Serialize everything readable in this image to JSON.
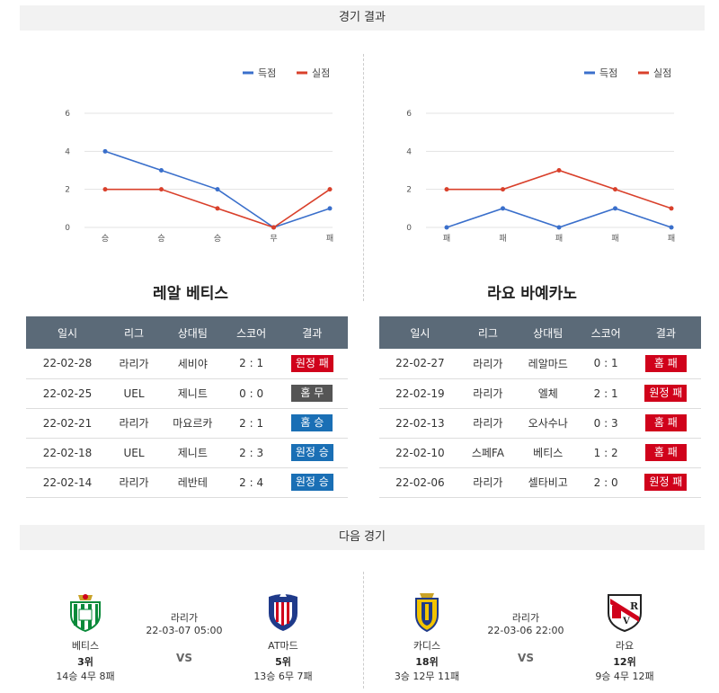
{
  "headers": {
    "results": "경기 결과",
    "next": "다음 경기"
  },
  "legend": {
    "scored": "득점",
    "conceded": "실점"
  },
  "colors": {
    "scored": "#3a6fcb",
    "conceded": "#d9402b",
    "loss": "#d0021b",
    "draw": "#555555",
    "win": "#1a6fb5",
    "table_header": "#5b6a78"
  },
  "chart_data": [
    {
      "type": "line",
      "categories": [
        "승",
        "승",
        "승",
        "무",
        "패"
      ],
      "yticks": [
        0,
        2,
        4,
        6
      ],
      "ylim": [
        0,
        6
      ],
      "series": [
        {
          "name": "득점",
          "values": [
            4,
            3,
            2,
            0,
            1
          ]
        },
        {
          "name": "실점",
          "values": [
            2,
            2,
            1,
            0,
            2
          ]
        }
      ]
    },
    {
      "type": "line",
      "categories": [
        "패",
        "패",
        "패",
        "패",
        "패"
      ],
      "yticks": [
        0,
        2,
        4,
        6
      ],
      "ylim": [
        0,
        6
      ],
      "series": [
        {
          "name": "득점",
          "values": [
            0,
            1,
            0,
            1,
            0
          ]
        },
        {
          "name": "실점",
          "values": [
            2,
            2,
            3,
            2,
            1
          ]
        }
      ]
    }
  ],
  "columns": [
    "일시",
    "리그",
    "상대팀",
    "스코어",
    "결과"
  ],
  "teams": [
    {
      "title": "레알 베티스",
      "rows": [
        {
          "date": "22-02-28",
          "league": "라리가",
          "opponent": "세비야",
          "score": "2 : 1",
          "result": "원정 패",
          "kind": "loss"
        },
        {
          "date": "22-02-25",
          "league": "UEL",
          "opponent": "제니트",
          "score": "0 : 0",
          "result": "홈 무",
          "kind": "draw"
        },
        {
          "date": "22-02-21",
          "league": "라리가",
          "opponent": "마요르카",
          "score": "2 : 1",
          "result": "홈 승",
          "kind": "win"
        },
        {
          "date": "22-02-18",
          "league": "UEL",
          "opponent": "제니트",
          "score": "2 : 3",
          "result": "원정 승",
          "kind": "win"
        },
        {
          "date": "22-02-14",
          "league": "라리가",
          "opponent": "레반테",
          "score": "2 : 4",
          "result": "원정 승",
          "kind": "win"
        }
      ]
    },
    {
      "title": "라요 바예카노",
      "rows": [
        {
          "date": "22-02-27",
          "league": "라리가",
          "opponent": "레알마드",
          "score": "0 : 1",
          "result": "홈 패",
          "kind": "loss"
        },
        {
          "date": "22-02-19",
          "league": "라리가",
          "opponent": "엘체",
          "score": "2 : 1",
          "result": "원정 패",
          "kind": "loss"
        },
        {
          "date": "22-02-13",
          "league": "라리가",
          "opponent": "오사수나",
          "score": "0 : 3",
          "result": "홈 패",
          "kind": "loss"
        },
        {
          "date": "22-02-10",
          "league": "스페FA",
          "opponent": "베티스",
          "score": "1 : 2",
          "result": "홈 패",
          "kind": "loss"
        },
        {
          "date": "22-02-06",
          "league": "라리가",
          "opponent": "셀타비고",
          "score": "2 : 0",
          "result": "원정 패",
          "kind": "loss"
        }
      ]
    }
  ],
  "next_matches": [
    {
      "league": "라리가",
      "datetime": "22-03-07 05:00",
      "vs": "VS",
      "home": {
        "name": "베티스",
        "rank": "3위",
        "record": "14승 4무 8패",
        "logo": "real-betis-crest"
      },
      "away": {
        "name": "AT마드",
        "rank": "5위",
        "record": "13승 6무 7패",
        "logo": "atletico-madrid-crest"
      }
    },
    {
      "league": "라리가",
      "datetime": "22-03-06 22:00",
      "vs": "VS",
      "home": {
        "name": "카디스",
        "rank": "18위",
        "record": "3승 12무 11패",
        "logo": "cadiz-crest"
      },
      "away": {
        "name": "라요",
        "rank": "12위",
        "record": "9승 4무 12패",
        "logo": "rayo-vallecano-crest"
      }
    }
  ]
}
